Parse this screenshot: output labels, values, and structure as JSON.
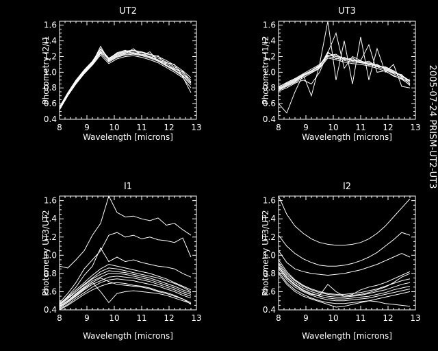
{
  "side_label": "2005-07-24 PRISM-UT2-UT3",
  "chart_data": [
    {
      "type": "line",
      "title": "UT2",
      "xlabel": "Wavelength [microns]",
      "ylabel": "Photometry I2/I1",
      "xlim": [
        8,
        13
      ],
      "ylim": [
        0.4,
        1.65
      ],
      "xticks": [
        "8",
        "9",
        "10",
        "11",
        "12",
        "13"
      ],
      "yticks": [
        "0.4",
        "0.6",
        "0.8",
        "1.0",
        "1.2",
        "1.4",
        "1.6"
      ],
      "x": [
        8.0,
        8.3,
        8.6,
        8.9,
        9.2,
        9.5,
        9.8,
        10.1,
        10.4,
        10.7,
        11.0,
        11.3,
        11.6,
        11.9,
        12.2,
        12.5,
        12.8
      ],
      "series": [
        {
          "values": [
            0.52,
            0.7,
            0.86,
            0.99,
            1.1,
            1.24,
            1.14,
            1.2,
            1.23,
            1.24,
            1.22,
            1.19,
            1.15,
            1.09,
            1.03,
            0.96,
            0.86
          ]
        },
        {
          "values": [
            0.54,
            0.72,
            0.88,
            1.01,
            1.12,
            1.27,
            1.16,
            1.22,
            1.25,
            1.25,
            1.23,
            1.2,
            1.16,
            1.11,
            1.05,
            0.98,
            0.88
          ]
        },
        {
          "values": [
            0.55,
            0.73,
            0.89,
            1.02,
            1.13,
            1.29,
            1.17,
            1.23,
            1.26,
            1.27,
            1.25,
            1.22,
            1.18,
            1.13,
            1.07,
            1.0,
            0.9
          ]
        },
        {
          "values": [
            0.53,
            0.71,
            0.87,
            1.0,
            1.11,
            1.25,
            1.13,
            1.19,
            1.22,
            1.23,
            1.21,
            1.18,
            1.14,
            1.08,
            1.02,
            0.95,
            0.84
          ]
        },
        {
          "values": [
            0.56,
            0.74,
            0.9,
            1.03,
            1.14,
            1.3,
            1.18,
            1.24,
            1.27,
            1.28,
            1.26,
            1.23,
            1.2,
            1.15,
            1.09,
            1.02,
            0.93
          ]
        },
        {
          "values": [
            0.52,
            0.7,
            0.85,
            0.98,
            1.09,
            1.22,
            1.11,
            1.17,
            1.2,
            1.21,
            1.19,
            1.16,
            1.12,
            1.06,
            1.0,
            0.93,
            0.8
          ]
        },
        {
          "values": [
            0.55,
            0.72,
            0.88,
            1.01,
            1.12,
            1.33,
            1.15,
            1.21,
            1.24,
            1.3,
            1.21,
            1.26,
            1.14,
            1.12,
            1.1,
            0.94,
            0.74
          ]
        },
        {
          "values": [
            0.54,
            0.73,
            0.89,
            1.02,
            1.13,
            1.26,
            1.17,
            1.25,
            1.28,
            1.24,
            1.26,
            1.19,
            1.21,
            1.09,
            1.04,
            1.01,
            0.87
          ]
        }
      ]
    },
    {
      "type": "line",
      "title": "UT3",
      "xlabel": "Wavelength [microns]",
      "ylabel": "Photometry I1/I2",
      "xlim": [
        8,
        13
      ],
      "ylim": [
        0.4,
        1.65
      ],
      "xticks": [
        "8",
        "9",
        "10",
        "11",
        "12",
        "13"
      ],
      "yticks": [
        "0.4",
        "0.6",
        "0.8",
        "1.0",
        "1.2",
        "1.4",
        "1.6"
      ],
      "x": [
        8.0,
        8.3,
        8.6,
        8.9,
        9.2,
        9.5,
        9.8,
        10.1,
        10.4,
        10.7,
        11.0,
        11.3,
        11.6,
        11.9,
        12.2,
        12.5,
        12.8
      ],
      "series": [
        {
          "values": [
            0.78,
            0.83,
            0.88,
            0.95,
            1.0,
            1.06,
            1.2,
            1.18,
            1.15,
            1.13,
            1.12,
            1.1,
            1.07,
            1.03,
            0.98,
            0.93,
            0.86
          ]
        },
        {
          "values": [
            0.8,
            0.85,
            0.9,
            0.96,
            1.01,
            1.08,
            1.22,
            1.2,
            1.17,
            1.15,
            1.13,
            1.11,
            1.08,
            1.05,
            1.0,
            0.95,
            0.88
          ]
        },
        {
          "values": [
            0.82,
            0.86,
            0.91,
            0.97,
            1.02,
            1.09,
            1.24,
            1.21,
            1.18,
            1.16,
            1.14,
            1.12,
            1.09,
            1.06,
            1.01,
            0.96,
            0.89
          ]
        },
        {
          "values": [
            0.77,
            0.82,
            0.87,
            0.93,
            0.99,
            1.05,
            1.18,
            1.16,
            1.13,
            1.11,
            1.1,
            1.08,
            1.05,
            1.01,
            0.96,
            0.91,
            0.84
          ]
        },
        {
          "values": [
            0.79,
            0.84,
            0.89,
            0.96,
            1.02,
            1.07,
            1.26,
            1.17,
            1.19,
            1.14,
            1.15,
            1.09,
            1.1,
            1.04,
            0.99,
            0.97,
            0.85
          ]
        },
        {
          "values": [
            0.81,
            0.87,
            0.92,
            0.98,
            1.04,
            1.1,
            1.21,
            1.23,
            1.16,
            1.18,
            1.12,
            1.14,
            1.07,
            1.07,
            1.02,
            0.94,
            0.9
          ]
        },
        {
          "values": [
            0.6,
            0.48,
            0.75,
            0.97,
            0.7,
            1.1,
            1.65,
            0.9,
            1.4,
            0.85,
            1.45,
            0.9,
            1.3,
            1.0,
            1.1,
            0.82,
            0.8
          ]
        },
        {
          "values": [
            0.76,
            0.8,
            0.86,
            0.9,
            0.85,
            1.0,
            1.25,
            1.5,
            1.05,
            1.2,
            1.15,
            1.35,
            1.0,
            1.02,
            0.95,
            0.92,
            0.83
          ]
        }
      ]
    },
    {
      "type": "line",
      "title": "I1",
      "xlabel": "Wavelength [microns]",
      "ylabel": "Photometry UT3/UT2",
      "xlim": [
        8,
        13
      ],
      "ylim": [
        0.4,
        1.65
      ],
      "xticks": [
        "8",
        "9",
        "10",
        "11",
        "12",
        "13"
      ],
      "yticks": [
        "0.4",
        "0.6",
        "0.8",
        "1.0",
        "1.2",
        "1.4",
        "1.6"
      ],
      "x": [
        8.0,
        8.3,
        8.6,
        8.9,
        9.2,
        9.5,
        9.8,
        10.1,
        10.4,
        10.7,
        11.0,
        11.3,
        11.6,
        11.9,
        12.2,
        12.5,
        12.8
      ],
      "series": [
        {
          "values": [
            0.88,
            0.86,
            0.95,
            1.05,
            1.22,
            1.35,
            1.65,
            1.47,
            1.42,
            1.43,
            1.4,
            1.38,
            1.41,
            1.33,
            1.35,
            1.28,
            1.22
          ]
        },
        {
          "values": [
            0.48,
            0.58,
            0.7,
            0.85,
            0.95,
            1.05,
            1.22,
            1.25,
            1.2,
            1.22,
            1.18,
            1.2,
            1.17,
            1.16,
            1.14,
            1.19,
            0.98
          ]
        },
        {
          "values": [
            0.46,
            0.55,
            0.65,
            0.78,
            0.88,
            1.08,
            0.93,
            0.98,
            0.93,
            0.95,
            0.92,
            0.9,
            0.88,
            0.87,
            0.85,
            0.8,
            0.76
          ]
        },
        {
          "values": [
            0.44,
            0.5,
            0.58,
            0.65,
            0.72,
            0.76,
            0.8,
            0.8,
            0.79,
            0.77,
            0.75,
            0.73,
            0.7,
            0.67,
            0.64,
            0.6,
            0.57
          ]
        },
        {
          "values": [
            0.42,
            0.48,
            0.55,
            0.62,
            0.68,
            0.72,
            0.76,
            0.77,
            0.76,
            0.75,
            0.73,
            0.71,
            0.68,
            0.65,
            0.62,
            0.58,
            0.55
          ]
        },
        {
          "values": [
            0.41,
            0.46,
            0.53,
            0.59,
            0.65,
            0.7,
            0.73,
            0.74,
            0.73,
            0.72,
            0.7,
            0.68,
            0.66,
            0.63,
            0.6,
            0.56,
            0.53
          ]
        },
        {
          "values": [
            0.45,
            0.52,
            0.6,
            0.67,
            0.74,
            0.79,
            0.83,
            0.82,
            0.81,
            0.79,
            0.77,
            0.75,
            0.72,
            0.69,
            0.66,
            0.62,
            0.59
          ]
        },
        {
          "values": [
            0.43,
            0.49,
            0.56,
            0.63,
            0.7,
            0.75,
            0.71,
            0.68,
            0.67,
            0.66,
            0.65,
            0.63,
            0.6,
            0.58,
            0.55,
            0.52,
            0.48
          ]
        },
        {
          "values": [
            0.4,
            0.45,
            0.51,
            0.57,
            0.62,
            0.66,
            0.69,
            0.7,
            0.69,
            0.67,
            0.66,
            0.64,
            0.61,
            0.59,
            0.56,
            0.52,
            0.46
          ]
        },
        {
          "values": [
            0.47,
            0.54,
            0.62,
            0.7,
            0.78,
            0.85,
            0.9,
            0.88,
            0.86,
            0.84,
            0.82,
            0.8,
            0.77,
            0.74,
            0.7,
            0.66,
            0.62
          ]
        },
        {
          "values": [
            0.44,
            0.5,
            0.57,
            0.64,
            0.7,
            0.6,
            0.48,
            0.58,
            0.6,
            0.61,
            0.6,
            0.59,
            0.58,
            0.56,
            0.53,
            0.5,
            0.47
          ]
        },
        {
          "values": [
            0.46,
            0.53,
            0.6,
            0.68,
            0.75,
            0.82,
            0.86,
            0.85,
            0.83,
            0.81,
            0.79,
            0.77,
            0.75,
            0.72,
            0.69,
            0.65,
            0.6
          ]
        }
      ]
    },
    {
      "type": "line",
      "title": "I2",
      "xlabel": "Wavelength [microns]",
      "ylabel": "Photometry UT3/UT2",
      "xlim": [
        8,
        13
      ],
      "ylim": [
        0.4,
        1.65
      ],
      "xticks": [
        "8",
        "9",
        "10",
        "11",
        "12",
        "13"
      ],
      "yticks": [
        "0.4",
        "0.6",
        "0.8",
        "1.0",
        "1.2",
        "1.4",
        "1.6"
      ],
      "x": [
        8.0,
        8.3,
        8.6,
        8.9,
        9.2,
        9.5,
        9.8,
        10.1,
        10.4,
        10.7,
        11.0,
        11.3,
        11.6,
        11.9,
        12.2,
        12.5,
        12.8
      ],
      "series": [
        {
          "values": [
            1.65,
            1.45,
            1.32,
            1.24,
            1.18,
            1.14,
            1.12,
            1.11,
            1.11,
            1.12,
            1.14,
            1.18,
            1.24,
            1.32,
            1.42,
            1.52,
            1.62
          ]
        },
        {
          "values": [
            1.22,
            1.1,
            1.02,
            0.96,
            0.92,
            0.89,
            0.88,
            0.88,
            0.89,
            0.91,
            0.94,
            0.98,
            1.03,
            1.1,
            1.17,
            1.25,
            1.22
          ]
        },
        {
          "values": [
            1.05,
            0.92,
            0.85,
            0.82,
            0.8,
            0.79,
            0.78,
            0.79,
            0.8,
            0.82,
            0.84,
            0.87,
            0.9,
            0.94,
            0.98,
            1.02,
            0.98
          ]
        },
        {
          "values": [
            0.95,
            0.82,
            0.73,
            0.67,
            0.63,
            0.6,
            0.58,
            0.57,
            0.57,
            0.58,
            0.59,
            0.61,
            0.63,
            0.66,
            0.69,
            0.72,
            0.74
          ]
        },
        {
          "values": [
            0.9,
            0.78,
            0.7,
            0.64,
            0.6,
            0.57,
            0.55,
            0.54,
            0.54,
            0.55,
            0.56,
            0.58,
            0.6,
            0.62,
            0.65,
            0.68,
            0.7
          ]
        },
        {
          "values": [
            0.88,
            0.76,
            0.68,
            0.62,
            0.58,
            0.55,
            0.53,
            0.52,
            0.52,
            0.53,
            0.54,
            0.55,
            0.57,
            0.59,
            0.62,
            0.64,
            0.66
          ]
        },
        {
          "values": [
            0.85,
            0.73,
            0.65,
            0.6,
            0.56,
            0.53,
            0.51,
            0.5,
            0.5,
            0.51,
            0.52,
            0.53,
            0.55,
            0.57,
            0.59,
            0.61,
            0.63
          ]
        },
        {
          "values": [
            0.82,
            0.7,
            0.62,
            0.57,
            0.53,
            0.5,
            0.48,
            0.47,
            0.47,
            0.48,
            0.49,
            0.5,
            0.52,
            0.54,
            0.56,
            0.58,
            0.6
          ]
        },
        {
          "values": [
            0.92,
            0.8,
            0.72,
            0.66,
            0.62,
            0.59,
            0.57,
            0.56,
            0.55,
            0.56,
            0.57,
            0.59,
            0.62,
            0.65,
            0.7,
            0.76,
            0.8
          ]
        },
        {
          "values": [
            0.8,
            0.68,
            0.6,
            0.55,
            0.52,
            0.49,
            0.46,
            0.43,
            0.44,
            0.46,
            0.48,
            0.5,
            0.49,
            0.47,
            0.46,
            0.45,
            0.44
          ]
        },
        {
          "values": [
            0.87,
            0.75,
            0.67,
            0.61,
            0.57,
            0.56,
            0.68,
            0.6,
            0.55,
            0.57,
            0.62,
            0.65,
            0.67,
            0.7,
            0.74,
            0.78,
            0.82
          ]
        }
      ]
    }
  ]
}
